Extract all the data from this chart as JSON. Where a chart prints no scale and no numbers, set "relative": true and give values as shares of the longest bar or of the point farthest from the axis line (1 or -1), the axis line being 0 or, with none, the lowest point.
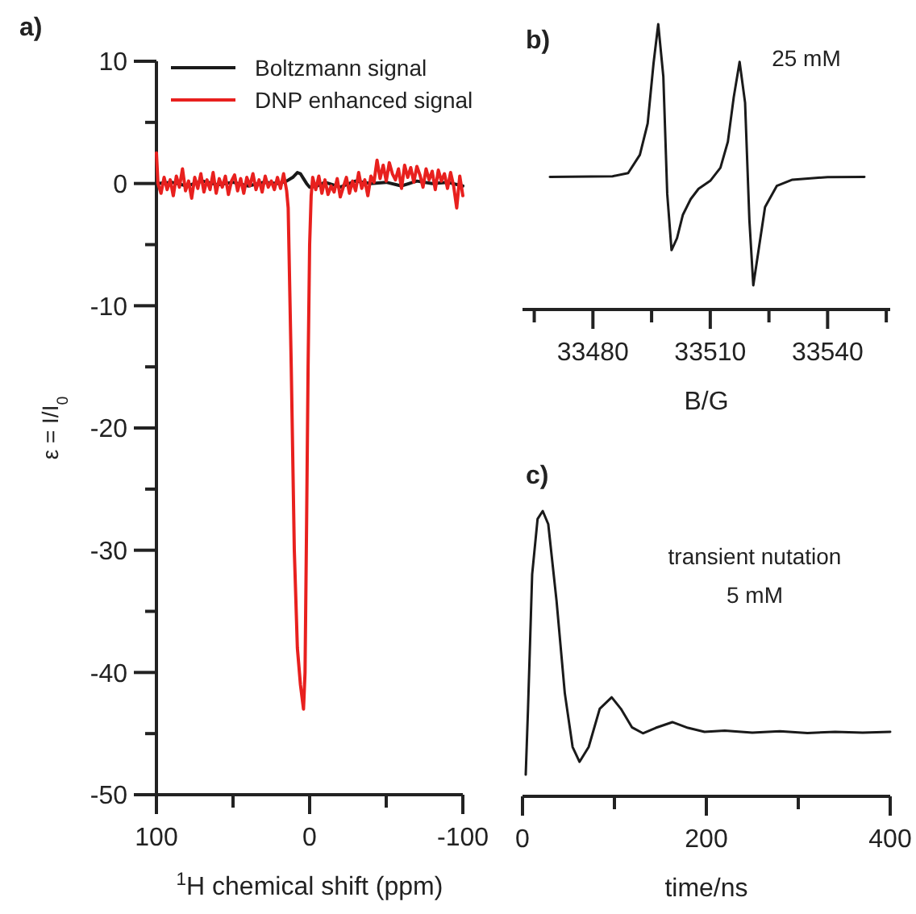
{
  "chart_data": [
    {
      "type": "line",
      "title": "a)",
      "xlabel": "$^{1}$H chemical shift (ppm)",
      "ylabel": "ε = I/I$_{0}$",
      "xlim": [
        100,
        -100
      ],
      "xticks": [
        100,
        {
          "value": 50,
          "label": null
        },
        0,
        {
          "value": -50,
          "label": null
        },
        -100
      ],
      "ylim": [
        -50,
        10
      ],
      "yticks": [
        10,
        {
          "value": 5,
          "label": null
        },
        0,
        {
          "value": -5,
          "label": null
        },
        -10,
        {
          "value": -15,
          "label": null
        },
        -20,
        {
          "value": -25,
          "label": null
        },
        -30,
        {
          "value": -35,
          "label": null
        },
        -40,
        {
          "value": -45,
          "label": null
        },
        -50
      ],
      "legend": "top right",
      "grid": false,
      "series": [
        {
          "name": "Boltzmann signal",
          "color": "#1a1a1a",
          "x": [
            100,
            90,
            80,
            70,
            60,
            50,
            40,
            30,
            20,
            15,
            11,
            8,
            6,
            4,
            2,
            0,
            -5,
            -10,
            -20,
            -30,
            -40,
            -50,
            -60,
            -70,
            -80,
            -90,
            -100
          ],
          "values": [
            0,
            0.1,
            -0.2,
            0.2,
            -0.1,
            0.1,
            -0.2,
            0.1,
            0,
            0.2,
            0.5,
            0.9,
            0.8,
            0.4,
            0,
            -0.3,
            -0.2,
            0.1,
            -0.3,
            0.2,
            0,
            0.1,
            -0.2,
            0.2,
            0,
            0.1,
            -0.2
          ]
        },
        {
          "name": "DNP enhanced signal",
          "color": "#e8201e",
          "x": [
            100,
            99,
            97,
            95,
            93,
            91,
            89,
            87,
            85,
            83,
            81,
            79,
            77,
            75,
            73,
            71,
            69,
            67,
            65,
            63,
            61,
            59,
            57,
            55,
            53,
            51,
            49,
            47,
            45,
            43,
            41,
            39,
            37,
            35,
            33,
            31,
            29,
            27,
            25,
            23,
            21,
            19,
            17,
            15,
            14,
            12,
            10,
            8,
            6,
            4,
            3,
            2,
            1,
            0,
            -1,
            -2,
            -4,
            -6,
            -8,
            -10,
            -12,
            -14,
            -16,
            -18,
            -20,
            -22,
            -24,
            -26,
            -28,
            -30,
            -32,
            -34,
            -36,
            -38,
            -40,
            -42,
            -44,
            -46,
            -48,
            -50,
            -52,
            -54,
            -56,
            -58,
            -60,
            -62,
            -64,
            -66,
            -68,
            -70,
            -72,
            -74,
            -76,
            -78,
            -80,
            -82,
            -84,
            -86,
            -88,
            -90,
            -92,
            -94,
            -96,
            -98,
            -100
          ],
          "values": [
            2.5,
            0,
            -0.8,
            0.5,
            -0.5,
            0.3,
            -1,
            0.6,
            -0.3,
            1.2,
            -0.6,
            0.2,
            -1.2,
            0.5,
            -0.4,
            0.8,
            -0.7,
            0.3,
            -0.5,
            0.9,
            -0.8,
            0.4,
            -0.3,
            0.6,
            -0.9,
            0.2,
            0.7,
            -0.6,
            0.4,
            -0.8,
            0.5,
            -0.2,
            0.8,
            -0.5,
            0.3,
            -0.7,
            0.6,
            -0.3,
            0.2,
            -0.5,
            0.5,
            -0.4,
            0.8,
            -0.6,
            -2,
            -15,
            -30,
            -38,
            -41,
            -43,
            -40,
            -28,
            -15,
            -5,
            -1,
            0.5,
            -0.5,
            0.6,
            -0.8,
            0.3,
            -0.9,
            -0.2,
            -0.7,
            0.4,
            -1.1,
            -0.3,
            0.5,
            -0.8,
            0.2,
            -0.6,
            0.9,
            -0.4,
            0.3,
            -1,
            0.6,
            0.1,
            1.9,
            0.4,
            1.5,
            0.2,
            1.7,
            0.8,
            0.3,
            1.2,
            -0.4,
            1.5,
            0.5,
            1.3,
            0.1,
            1.4,
            0.7,
            -0.3,
            1.2,
            0.3,
            1,
            -0.5,
            1.1,
            0.2,
            0.8,
            -0.4,
            0.9,
            -0.2,
            -2,
            0.6,
            -1
          ]
        }
      ]
    },
    {
      "type": "line",
      "title": "b)",
      "xlabel": "B/G",
      "annotations": [
        "25 mM"
      ],
      "relative": true,
      "xlim": [
        33462,
        33556
      ],
      "xticks": [
        {
          "value": 33465,
          "label": null
        },
        33480,
        {
          "value": 33495,
          "label": null
        },
        33510,
        {
          "value": 33525,
          "label": null
        },
        33540,
        {
          "value": 33555,
          "label": null
        }
      ],
      "series": [
        {
          "color": "#1a1a1a",
          "x": [
            33469,
            33485,
            33489,
            33492,
            33494,
            33495.5,
            33496.7,
            33498,
            33499,
            33500.1,
            33501.5,
            33503,
            33505,
            33507,
            33510,
            33512.6,
            33514.5,
            33516,
            33517.5,
            33518.9,
            33520,
            33521,
            33522.5,
            33524,
            33527,
            33531,
            33540,
            33549.4
          ],
          "values": [
            0.465,
            0.467,
            0.478,
            0.542,
            0.652,
            0.863,
            1,
            0.817,
            0.405,
            0.208,
            0.25,
            0.332,
            0.387,
            0.423,
            0.451,
            0.497,
            0.588,
            0.744,
            0.868,
            0.725,
            0.314,
            0.085,
            0.222,
            0.359,
            0.433,
            0.455,
            0.464,
            0.465
          ]
        }
      ]
    },
    {
      "type": "line",
      "title": "c)",
      "xlabel": "time/ns",
      "annotations": [
        "transient nutation",
        "5 mM"
      ],
      "relative": true,
      "xlim": [
        0,
        400
      ],
      "xticks": [
        0,
        {
          "value": 100,
          "label": null
        },
        200,
        {
          "value": 300,
          "label": null
        },
        400
      ],
      "series": [
        {
          "color": "#1a1a1a",
          "x": [
            3.5,
            6,
            10.5,
            16.4,
            22,
            28,
            37,
            46,
            54.5,
            62,
            72,
            84,
            97,
            107,
            119,
            131,
            145,
            163,
            180,
            198,
            220,
            250,
            280,
            310,
            340,
            370,
            400
          ],
          "values": [
            0.076,
            0.307,
            0.778,
            0.972,
            1,
            0.954,
            0.686,
            0.362,
            0.173,
            0.121,
            0.173,
            0.307,
            0.347,
            0.307,
            0.242,
            0.221,
            0.24,
            0.26,
            0.24,
            0.226,
            0.23,
            0.223,
            0.228,
            0.222,
            0.226,
            0.223,
            0.226
          ]
        }
      ]
    }
  ]
}
